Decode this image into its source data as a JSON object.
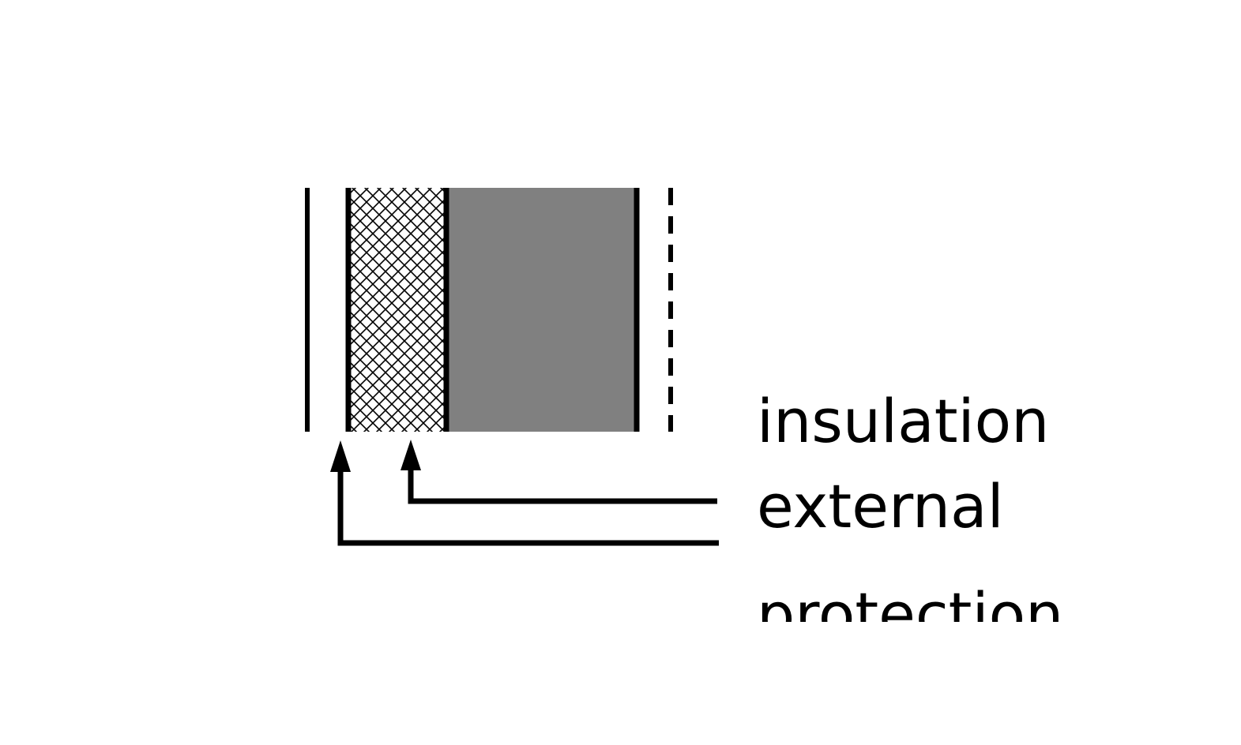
{
  "labels": {
    "insulation": "insulation",
    "external": "external",
    "protection": "protection"
  },
  "colors": {
    "background": "#ffffff",
    "ink": "#000000",
    "core_fill": "#808080"
  },
  "icons": {
    "arrow": "up-arrow-icon",
    "hatch": "crosshatch-pattern"
  }
}
